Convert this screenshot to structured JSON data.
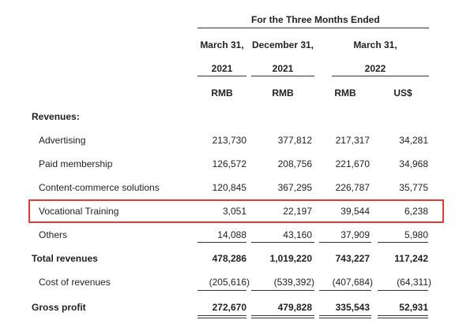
{
  "header": {
    "period_title": "For the Three Months Ended",
    "col_dates": [
      {
        "month": "March 31,",
        "year": "2021"
      },
      {
        "month": "December 31,",
        "year": "2021"
      },
      {
        "month": "March 31,",
        "year": "2022"
      }
    ],
    "currencies": [
      "RMB",
      "RMB",
      "RMB",
      "US$"
    ]
  },
  "section_revenues": "Revenues:",
  "rows": [
    {
      "label": "Advertising",
      "values": [
        "213,730",
        "377,812",
        "217,317",
        "34,281"
      ]
    },
    {
      "label": "Paid membership",
      "values": [
        "126,572",
        "208,756",
        "221,670",
        "34,968"
      ]
    },
    {
      "label": "Content-commerce solutions",
      "values": [
        "120,845",
        "367,295",
        "226,787",
        "35,775"
      ]
    },
    {
      "label": "Vocational Training",
      "values": [
        "3,051",
        "22,197",
        "39,544",
        "6,238"
      ]
    },
    {
      "label": "Others",
      "values": [
        "14,088",
        "43,160",
        "37,909",
        "5,980"
      ]
    }
  ],
  "total_revenues": {
    "label": "Total revenues",
    "values": [
      "478,286",
      "1,019,220",
      "743,227",
      "117,242"
    ]
  },
  "cost_of_revenues": {
    "label": "Cost of revenues",
    "values": [
      "(205,616)",
      "(539,392)",
      "(407,684)",
      "(64,311)"
    ]
  },
  "gross_profit": {
    "label": "Gross profit",
    "values": [
      "272,670",
      "479,828",
      "335,543",
      "52,931"
    ]
  },
  "highlight_color": "#e53935"
}
